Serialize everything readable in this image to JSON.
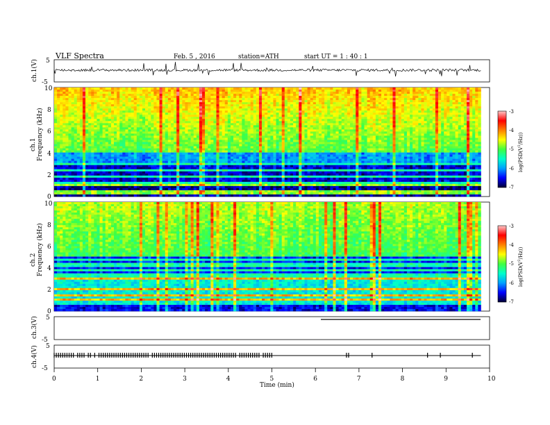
{
  "header": {
    "title": "VLF  Spectra",
    "date": "Feb. 5  , 2016",
    "station": "station=ATH",
    "start": "start  UT  =   1 : 40 : 1"
  },
  "chart_data": [
    {
      "type": "line",
      "panel": "ch1-waveform",
      "ylabel": "ch.1(V)",
      "ylim": [
        -5,
        5
      ],
      "yticks": [
        "5",
        "-5"
      ],
      "description_series": "waveform voltage hovering near 0 V with occasional spikes"
    },
    {
      "type": "heatmap",
      "panel": "ch1-spectrogram",
      "ylabel": "ch.1\nFrequency  (kHz)",
      "ylabel_parts": [
        "ch.1",
        "Frequency  (kHz)"
      ],
      "ylim": [
        0,
        10
      ],
      "yticks": [
        "0",
        "2",
        "4",
        "6",
        "8",
        "10"
      ],
      "colorbar": {
        "label": "log(PSD(V²/Hz))",
        "label_parts": [
          "log(PSD(V",
          "2",
          "/Hz))"
        ],
        "ticks": [
          "-3",
          "-4",
          "-5",
          "-6",
          "-7"
        ],
        "range": [
          -7,
          -3
        ]
      }
    },
    {
      "type": "heatmap",
      "panel": "ch2-spectrogram",
      "ylabel": "ch.2\nFrequency  (kHz)",
      "ylabel_parts": [
        "ch.2",
        "Frequency  (kHz)"
      ],
      "ylim": [
        0,
        10
      ],
      "yticks": [
        "0",
        "2",
        "4",
        "6",
        "8",
        "10"
      ],
      "colorbar": {
        "label": "log(PSD(V²/Hz))",
        "label_parts": [
          "log(PSD(V",
          "2",
          "/Hz))"
        ],
        "ticks": [
          "-3",
          "-4",
          "-5",
          "-6",
          "-7"
        ],
        "range": [
          -7,
          -3
        ]
      }
    },
    {
      "type": "line",
      "panel": "ch3-waveform",
      "ylabel": "ch.3(V)",
      "ylim": [
        -5,
        5
      ],
      "yticks": [
        "5",
        "-5"
      ]
    },
    {
      "type": "line",
      "panel": "ch4-waveform",
      "ylabel": "ch.4(V)",
      "ylim": [
        -5,
        5
      ],
      "yticks": [
        "5",
        "-5"
      ]
    }
  ],
  "xaxis": {
    "label": "Time  (min)",
    "range": [
      0,
      10
    ],
    "ticks": [
      "0",
      "1",
      "2",
      "3",
      "4",
      "5",
      "6",
      "7",
      "8",
      "9",
      "10"
    ]
  },
  "colors": {
    "scale": [
      "#000033",
      "#0000ff",
      "#00a0ff",
      "#00ffcc",
      "#40ff40",
      "#ffff00",
      "#ff8000",
      "#ff0000",
      "#ffc8c8"
    ]
  }
}
